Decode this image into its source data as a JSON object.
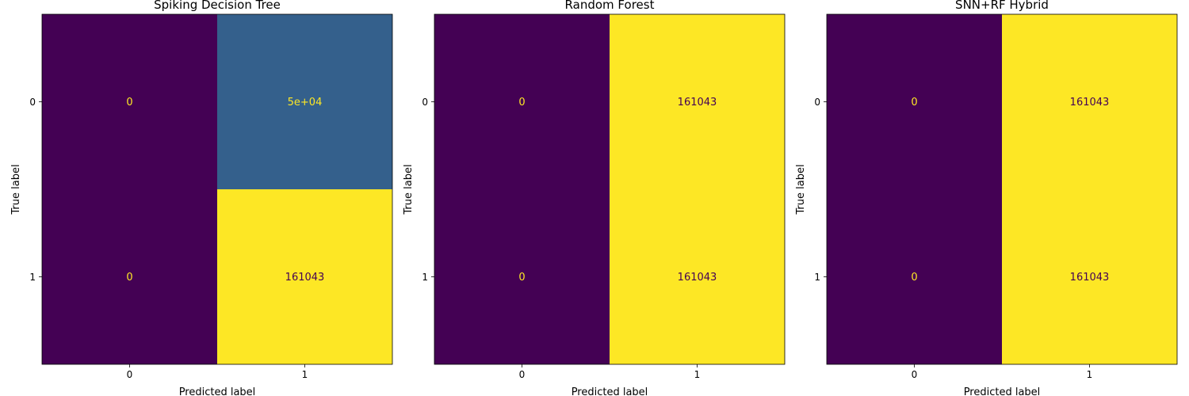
{
  "figure": {
    "panel_count": 3
  },
  "chart_data": [
    {
      "type": "heatmap",
      "title": "Spiking Decision Tree",
      "xlabel": "Predicted label",
      "ylabel": "True label",
      "x_ticks": [
        "0",
        "1"
      ],
      "y_ticks": [
        "0",
        "1"
      ],
      "values": [
        [
          0,
          50000
        ],
        [
          0,
          161043
        ]
      ],
      "labels": [
        [
          "0",
          "5e+04"
        ],
        [
          "0",
          "161043"
        ]
      ],
      "vmin": 0,
      "vmax": 161043,
      "colormap": "viridis"
    },
    {
      "type": "heatmap",
      "title": "Random Forest",
      "xlabel": "Predicted label",
      "ylabel": "True label",
      "x_ticks": [
        "0",
        "1"
      ],
      "y_ticks": [
        "0",
        "1"
      ],
      "values": [
        [
          0,
          161043
        ],
        [
          0,
          161043
        ]
      ],
      "labels": [
        [
          "0",
          "161043"
        ],
        [
          "0",
          "161043"
        ]
      ],
      "vmin": 0,
      "vmax": 161043,
      "colormap": "viridis"
    },
    {
      "type": "heatmap",
      "title": "SNN+RF Hybrid",
      "xlabel": "Predicted label",
      "ylabel": "True label",
      "x_ticks": [
        "0",
        "1"
      ],
      "y_ticks": [
        "0",
        "1"
      ],
      "values": [
        [
          0,
          161043
        ],
        [
          0,
          161043
        ]
      ],
      "labels": [
        [
          "0",
          "161043"
        ],
        [
          "0",
          "161043"
        ]
      ],
      "vmin": 0,
      "vmax": 161043,
      "colormap": "viridis"
    }
  ]
}
